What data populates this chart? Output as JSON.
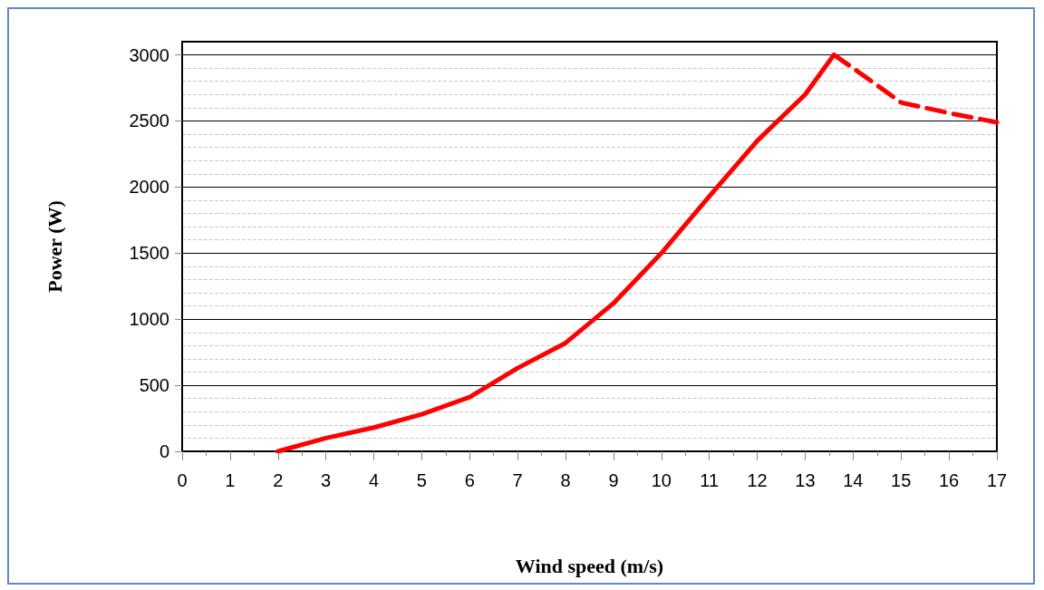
{
  "chart_data": {
    "type": "line",
    "xlabel": "Wind speed (m/s)",
    "ylabel": "Power (W)",
    "xlim": [
      0,
      17
    ],
    "ylim": [
      0,
      3100
    ],
    "xticks": [
      0,
      {
        "value": 0.5,
        "label": null
      },
      1,
      {
        "value": 1.5,
        "label": null
      },
      2,
      {
        "value": 2.5,
        "label": null
      },
      3,
      {
        "value": 3.5,
        "label": null
      },
      4,
      {
        "value": 4.5,
        "label": null
      },
      5,
      {
        "value": 5.5,
        "label": null
      },
      6,
      {
        "value": 6.5,
        "label": null
      },
      7,
      {
        "value": 7.5,
        "label": null
      },
      8,
      {
        "value": 8.5,
        "label": null
      },
      9,
      {
        "value": 9.5,
        "label": null
      },
      10,
      {
        "value": 10.5,
        "label": null
      },
      11,
      {
        "value": 11.5,
        "label": null
      },
      12,
      {
        "value": 12.5,
        "label": null
      },
      13,
      {
        "value": 13.5,
        "label": null
      },
      14,
      {
        "value": 14.5,
        "label": null
      },
      15,
      {
        "value": 15.5,
        "label": null
      },
      16,
      {
        "value": 16.5,
        "label": null
      },
      17
    ],
    "yticks": [
      0,
      {
        "value": 100,
        "label": null
      },
      {
        "value": 200,
        "label": null
      },
      {
        "value": 300,
        "label": null
      },
      {
        "value": 400,
        "label": null
      },
      500,
      {
        "value": 600,
        "label": null
      },
      {
        "value": 700,
        "label": null
      },
      {
        "value": 800,
        "label": null
      },
      {
        "value": 900,
        "label": null
      },
      1000,
      {
        "value": 1100,
        "label": null
      },
      {
        "value": 1200,
        "label": null
      },
      {
        "value": 1300,
        "label": null
      },
      {
        "value": 1400,
        "label": null
      },
      1500,
      {
        "value": 1600,
        "label": null
      },
      {
        "value": 1700,
        "label": null
      },
      {
        "value": 1800,
        "label": null
      },
      {
        "value": 1900,
        "label": null
      },
      2000,
      {
        "value": 2100,
        "label": null
      },
      {
        "value": 2200,
        "label": null
      },
      {
        "value": 2300,
        "label": null
      },
      {
        "value": 2400,
        "label": null
      },
      2500,
      {
        "value": 2600,
        "label": null
      },
      {
        "value": 2700,
        "label": null
      },
      {
        "value": 2800,
        "label": null
      },
      {
        "value": 2900,
        "label": null
      },
      3000
    ],
    "grid": "y",
    "marker": "none",
    "series": [
      {
        "color": "#ff0000",
        "line_style": "solid",
        "x": [
          2,
          3,
          4,
          5,
          6,
          7,
          8,
          9,
          10,
          11,
          12,
          13,
          13.6
        ],
        "values": [
          0,
          100,
          180,
          280,
          410,
          630,
          820,
          1120,
          1500,
          1930,
          2350,
          2700,
          3000
        ]
      },
      {
        "color": "#ff0000",
        "line_style": "dashed",
        "x": [
          13.6,
          14,
          15,
          16,
          17
        ],
        "values": [
          3000,
          2900,
          2640,
          2560,
          2490
        ]
      }
    ]
  }
}
